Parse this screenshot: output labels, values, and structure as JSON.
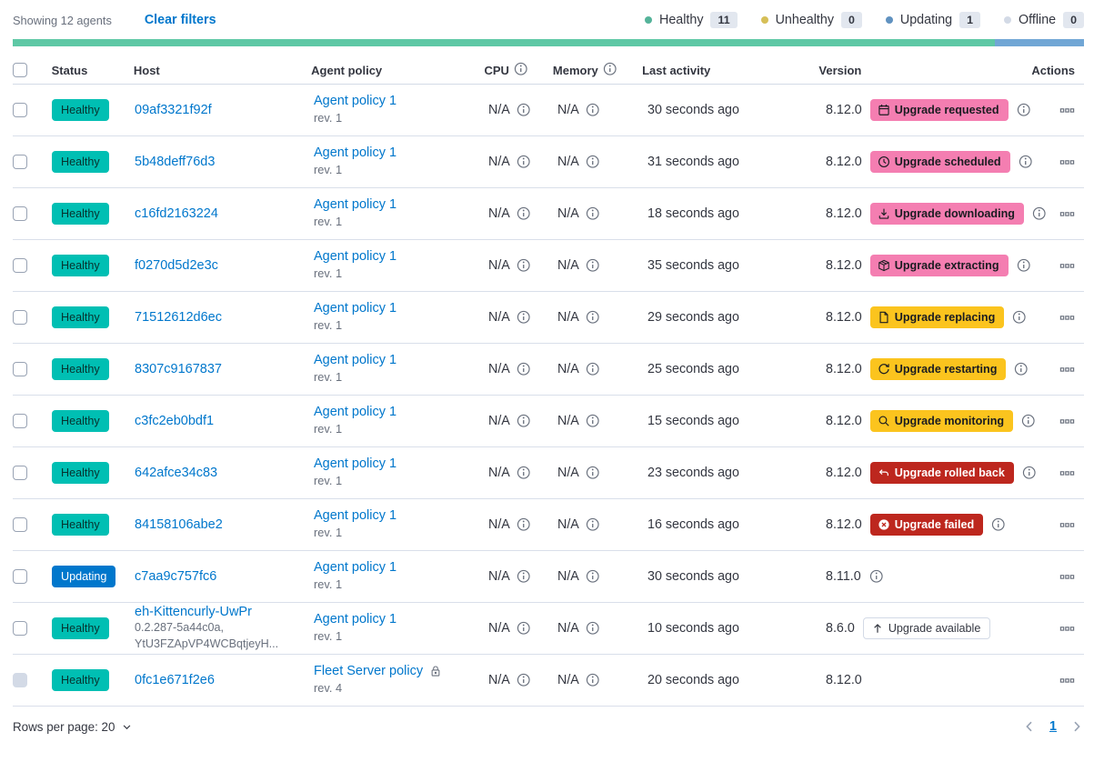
{
  "toolbar": {
    "showing": "Showing 12 agents",
    "clear_filters": "Clear filters"
  },
  "legend": {
    "items": [
      {
        "id": "healthy",
        "label": "Healthy",
        "count": "11",
        "color": "#54B399"
      },
      {
        "id": "unhealthy",
        "label": "Unhealthy",
        "count": "0",
        "color": "#D6BF57"
      },
      {
        "id": "updating",
        "label": "Updating",
        "count": "1",
        "color": "#6092C0"
      },
      {
        "id": "offline",
        "label": "Offline",
        "count": "0",
        "color": "#D3DAE6"
      }
    ]
  },
  "health_bar": {
    "segments": [
      {
        "name": "healthy",
        "color": "#5EC8A5",
        "value": 11
      },
      {
        "name": "updating",
        "color": "#71A6D5",
        "value": 1
      }
    ]
  },
  "table": {
    "columns": [
      {
        "id": "status",
        "label": "Status"
      },
      {
        "id": "host",
        "label": "Host"
      },
      {
        "id": "policy",
        "label": "Agent policy"
      },
      {
        "id": "cpu",
        "label": "CPU",
        "info": true
      },
      {
        "id": "memory",
        "label": "Memory",
        "info": true
      },
      {
        "id": "activity",
        "label": "Last activity"
      },
      {
        "id": "version",
        "label": "Version"
      },
      {
        "id": "actions",
        "label": "Actions",
        "align": "right"
      }
    ]
  },
  "agents": [
    {
      "status": "Healthy",
      "status_variant": "healthy",
      "host": "09af3321f92f",
      "policy": "Agent policy 1",
      "policy_rev": "rev. 1",
      "cpu": "N/A",
      "memory": "N/A",
      "last_activity": "30 seconds ago",
      "version": "8.12.0",
      "upgrade_badge": {
        "label": "Upgrade requested",
        "icon": "calendar-icon",
        "variant": "accent"
      },
      "version_info": true
    },
    {
      "status": "Healthy",
      "status_variant": "healthy",
      "host": "5b48deff76d3",
      "policy": "Agent policy 1",
      "policy_rev": "rev. 1",
      "cpu": "N/A",
      "memory": "N/A",
      "last_activity": "31 seconds ago",
      "version": "8.12.0",
      "upgrade_badge": {
        "label": "Upgrade scheduled",
        "icon": "clock-icon",
        "variant": "accent"
      },
      "version_info": true
    },
    {
      "status": "Healthy",
      "status_variant": "healthy",
      "host": "c16fd2163224",
      "policy": "Agent policy 1",
      "policy_rev": "rev. 1",
      "cpu": "N/A",
      "memory": "N/A",
      "last_activity": "18 seconds ago",
      "version": "8.12.0",
      "upgrade_badge": {
        "label": "Upgrade downloading",
        "icon": "download-icon",
        "variant": "accent"
      },
      "version_info": true
    },
    {
      "status": "Healthy",
      "status_variant": "healthy",
      "host": "f0270d5d2e3c",
      "policy": "Agent policy 1",
      "policy_rev": "rev. 1",
      "cpu": "N/A",
      "memory": "N/A",
      "last_activity": "35 seconds ago",
      "version": "8.12.0",
      "upgrade_badge": {
        "label": "Upgrade extracting",
        "icon": "package-icon",
        "variant": "accent"
      },
      "version_info": true
    },
    {
      "status": "Healthy",
      "status_variant": "healthy",
      "host": "71512612d6ec",
      "policy": "Agent policy 1",
      "policy_rev": "rev. 1",
      "cpu": "N/A",
      "memory": "N/A",
      "last_activity": "29 seconds ago",
      "version": "8.12.0",
      "upgrade_badge": {
        "label": "Upgrade replacing",
        "icon": "document-icon",
        "variant": "warning"
      },
      "version_info": true
    },
    {
      "status": "Healthy",
      "status_variant": "healthy",
      "host": "8307c9167837",
      "policy": "Agent policy 1",
      "policy_rev": "rev. 1",
      "cpu": "N/A",
      "memory": "N/A",
      "last_activity": "25 seconds ago",
      "version": "8.12.0",
      "upgrade_badge": {
        "label": "Upgrade restarting",
        "icon": "refresh-icon",
        "variant": "warning"
      },
      "version_info": true
    },
    {
      "status": "Healthy",
      "status_variant": "healthy",
      "host": "c3fc2eb0bdf1",
      "policy": "Agent policy 1",
      "policy_rev": "rev. 1",
      "cpu": "N/A",
      "memory": "N/A",
      "last_activity": "15 seconds ago",
      "version": "8.12.0",
      "upgrade_badge": {
        "label": "Upgrade monitoring",
        "icon": "inspect-icon",
        "variant": "warning"
      },
      "version_info": true
    },
    {
      "status": "Healthy",
      "status_variant": "healthy",
      "host": "642afce34c83",
      "policy": "Agent policy 1",
      "policy_rev": "rev. 1",
      "cpu": "N/A",
      "memory": "N/A",
      "last_activity": "23 seconds ago",
      "version": "8.12.0",
      "upgrade_badge": {
        "label": "Upgrade rolled back",
        "icon": "return-icon",
        "variant": "danger"
      },
      "version_info": true
    },
    {
      "status": "Healthy",
      "status_variant": "healthy",
      "host": "84158106abe2",
      "policy": "Agent policy 1",
      "policy_rev": "rev. 1",
      "cpu": "N/A",
      "memory": "N/A",
      "last_activity": "16 seconds ago",
      "version": "8.12.0",
      "upgrade_badge": {
        "label": "Upgrade failed",
        "icon": "error-icon",
        "variant": "danger"
      },
      "version_info": true
    },
    {
      "status": "Updating",
      "status_variant": "updating",
      "host": "c7aa9c757fc6",
      "policy": "Agent policy 1",
      "policy_rev": "rev. 1",
      "cpu": "N/A",
      "memory": "N/A",
      "last_activity": "30 seconds ago",
      "version": "8.11.0",
      "upgrade_badge": null,
      "version_info": true
    },
    {
      "status": "Healthy",
      "status_variant": "healthy",
      "host": "eh-Kittencurly-UwPr",
      "host_sub": [
        "0.2.287-5a44c0a,",
        "YtU3FZApVP4WCBqtjeyH..."
      ],
      "policy": "Agent policy 1",
      "policy_rev": "rev. 1",
      "cpu": "N/A",
      "memory": "N/A",
      "last_activity": "10 seconds ago",
      "version": "8.6.0",
      "upgrade_badge": {
        "label": "Upgrade available",
        "icon": "arrow-up-icon",
        "variant": "hollow"
      },
      "version_info": false
    },
    {
      "status": "Healthy",
      "status_variant": "healthy",
      "host": "0fc1e671f2e6",
      "policy": "Fleet Server policy",
      "policy_rev": "rev. 4",
      "policy_locked": true,
      "cpu": "N/A",
      "memory": "N/A",
      "last_activity": "20 seconds ago",
      "version": "8.12.0",
      "upgrade_badge": null,
      "version_info": false,
      "checkbox_disabled": true
    }
  ],
  "footer": {
    "rows_per_page": "Rows per page: 20",
    "page": "1"
  }
}
